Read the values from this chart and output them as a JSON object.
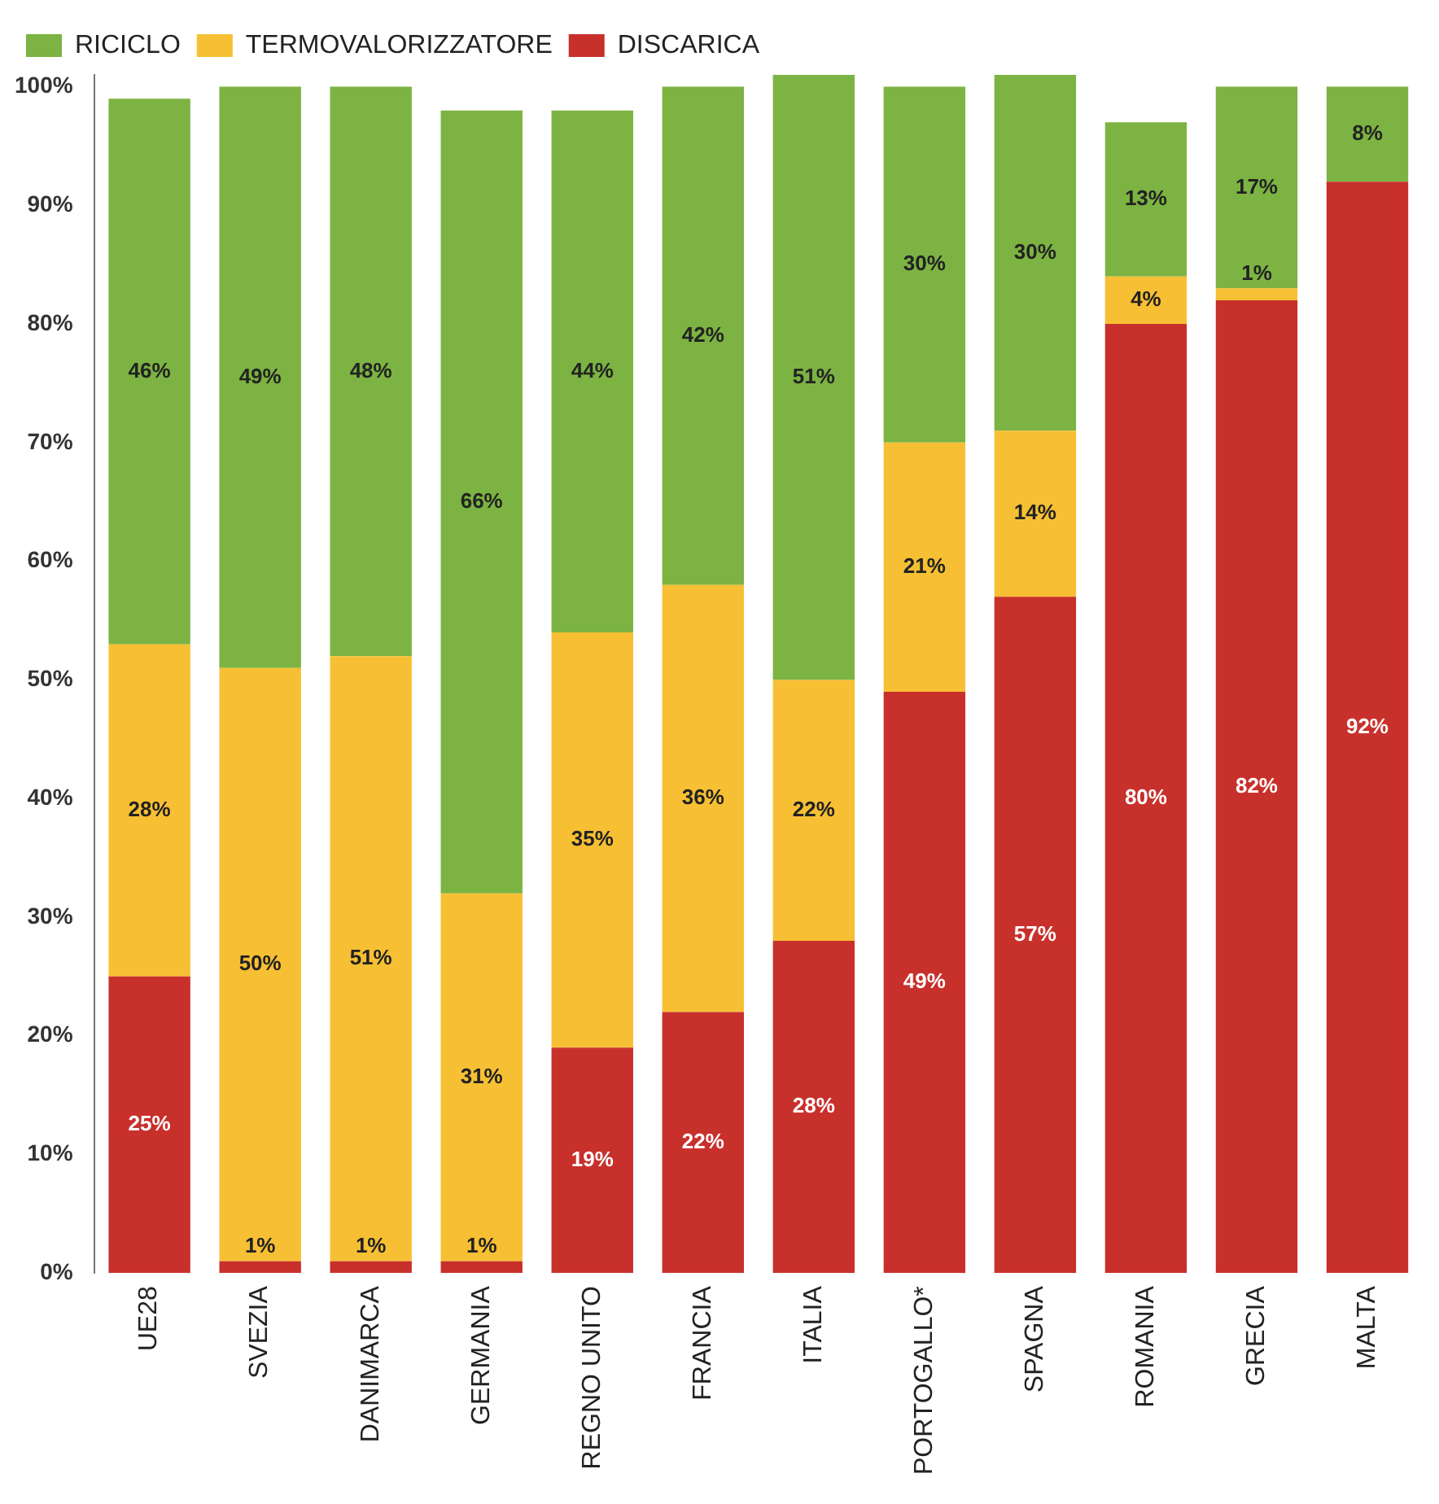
{
  "chart_data": {
    "type": "bar",
    "stacked": true,
    "legend": "top left",
    "grid": false,
    "categories": [
      "UE28",
      "SVEZIA",
      "DANIMARCA",
      "GERMANIA",
      "REGNO UNITO",
      "FRANCIA",
      "ITALIA",
      "PORTOGALLO*",
      "SPAGNA",
      "ROMANIA",
      "GRECIA",
      "MALTA"
    ],
    "series": [
      {
        "name": "DISCARICA",
        "color": "#c8302c",
        "values": [
          25,
          1,
          1,
          1,
          19,
          22,
          28,
          49,
          57,
          80,
          82,
          92
        ],
        "value_labels": [
          "25%",
          "1%",
          "1%",
          "1%",
          "19%",
          "22%",
          "28%",
          "49%",
          "57%",
          "80%",
          "82%",
          "92%"
        ]
      },
      {
        "name": "TERMOVALORIZZATORE",
        "color": "#f7bf33",
        "values": [
          28,
          50,
          51,
          31,
          35,
          36,
          22,
          21,
          14,
          4,
          1,
          0
        ],
        "value_labels": [
          "28%",
          "50%",
          "51%",
          "31%",
          "35%",
          "36%",
          "22%",
          "21%",
          "14%",
          "4%",
          "1%",
          null
        ]
      },
      {
        "name": "RICICLO",
        "color": "#7cb342",
        "values": [
          46,
          49,
          48,
          66,
          44,
          42,
          51,
          30,
          30,
          13,
          17,
          8
        ],
        "value_labels": [
          "46%",
          "49%",
          "48%",
          "66%",
          "44%",
          "42%",
          "51%",
          "30%",
          "30%",
          "13%",
          "17%",
          "8%"
        ]
      }
    ],
    "ylim": [
      0,
      101
    ],
    "yticks": [
      {
        "value": 0,
        "label": "0%"
      },
      {
        "value": 10,
        "label": "10%"
      },
      {
        "value": 20,
        "label": "20%"
      },
      {
        "value": 30,
        "label": "30%"
      },
      {
        "value": 40,
        "label": "40%"
      },
      {
        "value": 50,
        "label": "50%"
      },
      {
        "value": 60,
        "label": "60%"
      },
      {
        "value": 70,
        "label": "70%"
      },
      {
        "value": 80,
        "label": "80%"
      },
      {
        "value": 90,
        "label": "90%"
      },
      {
        "value": 100,
        "label": "100%"
      }
    ]
  }
}
